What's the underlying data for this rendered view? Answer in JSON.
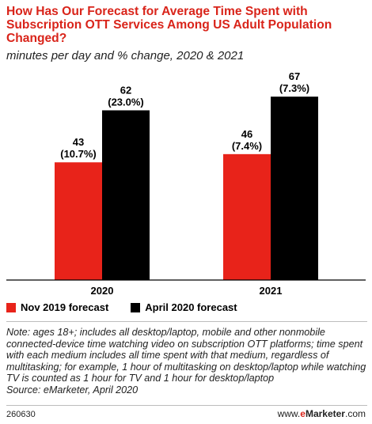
{
  "title": "How Has Our Forecast for Average Time Spent with Subscription OTT Services Among US Adult Population Changed?",
  "subtitle": "minutes per day and % change, 2020 & 2021",
  "colors": {
    "accent": "#d9241a",
    "series1": "#e8231a",
    "series2": "#000000"
  },
  "chart_data": {
    "type": "bar",
    "categories": [
      "2020",
      "2021"
    ],
    "series": [
      {
        "name": "Nov 2019 forecast",
        "values": [
          43,
          46
        ],
        "change_labels": [
          "(10.7%)",
          "(7.4%)"
        ],
        "color": "#e8231a"
      },
      {
        "name": "April 2020 forecast",
        "values": [
          62,
          67
        ],
        "change_labels": [
          "(23.0%)",
          "(7.3%)"
        ],
        "color": "#000000"
      }
    ],
    "ylim": [
      0,
      80
    ],
    "grid": false,
    "legend_position": "bottom-left"
  },
  "legend": [
    {
      "label": "Nov 2019 forecast",
      "color": "#e8231a"
    },
    {
      "label": "April 2020 forecast",
      "color": "#000000"
    }
  ],
  "note": "Note: ages 18+; includes all desktop/laptop, mobile and other nonmobile connected-device time watching video on subscription OTT platforms; time spent with each medium includes all time spent with that medium, regardless of multitasking; for example, 1 hour of multitasking on desktop/laptop while watching TV is counted as 1 hour for TV and 1 hour for desktop/laptop",
  "source": "Source: eMarketer, April 2020",
  "chart_id": "260630",
  "brand": {
    "prefix": "www.",
    "e": "e",
    "name": "Marketer",
    "suffix": ".com"
  }
}
